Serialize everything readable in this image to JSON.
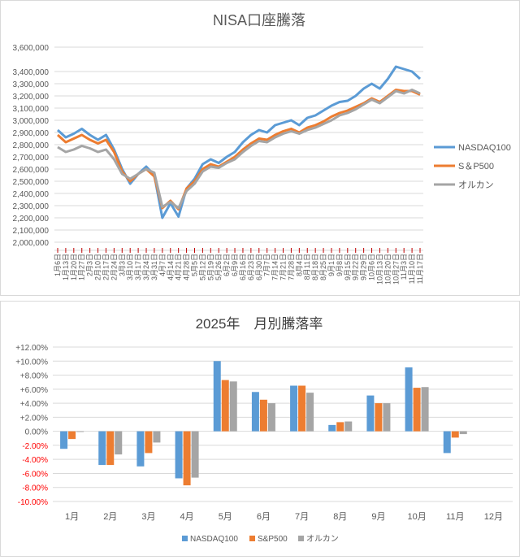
{
  "colors": {
    "nasdaq": "#5b9bd5",
    "sp500": "#ed7d31",
    "orcan": "#a5a5a5",
    "grid": "#d9d9d9",
    "text": "#595959"
  },
  "chart_data": [
    {
      "type": "line",
      "title": "NISA口座騰落",
      "ylim": [
        2000000,
        3600000
      ],
      "yticks": [
        "3,600,000",
        "3,400,000",
        "3,300,000",
        "3,200,000",
        "3,100,000",
        "3,000,000",
        "2,900,000",
        "2,800,000",
        "2,700,000",
        "2,600,000",
        "2,500,000",
        "2,400,000",
        "2,300,000",
        "2,200,000",
        "2,100,000",
        "2,000,000"
      ],
      "ytick_values": [
        3600000,
        3400000,
        3300000,
        3200000,
        3100000,
        3000000,
        2900000,
        2800000,
        2700000,
        2600000,
        2500000,
        2400000,
        2300000,
        2200000,
        2100000,
        2000000
      ],
      "xticks": [
        "1月6日",
        "1月13日",
        "1月20日",
        "1月27日",
        "2月3日",
        "2月10日",
        "2月17日",
        "2月24日",
        "3月3日",
        "3月10日",
        "3月17日",
        "3月24日",
        "3月31日",
        "4月7日",
        "4月14日",
        "4月21日",
        "4月28日",
        "5月5日",
        "5月12日",
        "5月19日",
        "5月26日",
        "6月2日",
        "6月9日",
        "6月16日",
        "6月23日",
        "6月30日",
        "7月7日",
        "7月14日",
        "7月21日",
        "7月28日",
        "8月4日",
        "8月11日",
        "8月18日",
        "8月25日",
        "9月1日",
        "9月8日",
        "9月15日",
        "9月22日",
        "9月29日",
        "10月6日",
        "10月13日",
        "10月20日",
        "10月27日",
        "11月3日",
        "11月10日",
        "11月17日"
      ],
      "x": [
        0,
        1,
        2,
        3,
        4,
        5,
        6,
        7,
        8,
        9,
        10,
        11,
        12,
        13,
        14,
        15,
        16,
        17,
        18,
        19,
        20,
        21,
        22,
        23,
        24,
        25,
        26,
        27,
        28,
        29,
        30,
        31,
        32,
        33,
        34,
        35,
        36,
        37,
        38,
        39,
        40,
        41,
        42,
        43,
        44,
        45
      ],
      "series": [
        {
          "name": "NASDAQ100",
          "values": [
            2920000,
            2860000,
            2890000,
            2930000,
            2880000,
            2840000,
            2880000,
            2760000,
            2600000,
            2480000,
            2560000,
            2620000,
            2550000,
            2200000,
            2320000,
            2210000,
            2440000,
            2520000,
            2640000,
            2680000,
            2650000,
            2700000,
            2740000,
            2820000,
            2880000,
            2920000,
            2900000,
            2960000,
            2980000,
            3000000,
            2960000,
            3020000,
            3040000,
            3080000,
            3120000,
            3150000,
            3160000,
            3200000,
            3260000,
            3300000,
            3260000,
            3340000,
            3440000,
            3420000,
            3400000,
            3340000
          ]
        },
        {
          "name": "S＆P500",
          "values": [
            2880000,
            2820000,
            2850000,
            2880000,
            2840000,
            2810000,
            2840000,
            2740000,
            2580000,
            2500000,
            2560000,
            2600000,
            2540000,
            2280000,
            2340000,
            2270000,
            2440000,
            2500000,
            2600000,
            2640000,
            2620000,
            2660000,
            2700000,
            2760000,
            2810000,
            2850000,
            2840000,
            2880000,
            2910000,
            2930000,
            2900000,
            2940000,
            2960000,
            2990000,
            3030000,
            3060000,
            3080000,
            3110000,
            3140000,
            3180000,
            3150000,
            3200000,
            3250000,
            3240000,
            3240000,
            3210000
          ]
        },
        {
          "name": "オルカン",
          "values": [
            2780000,
            2740000,
            2760000,
            2790000,
            2770000,
            2740000,
            2760000,
            2680000,
            2560000,
            2520000,
            2560000,
            2600000,
            2570000,
            2290000,
            2330000,
            2280000,
            2420000,
            2480000,
            2580000,
            2620000,
            2610000,
            2650000,
            2680000,
            2740000,
            2790000,
            2830000,
            2820000,
            2860000,
            2890000,
            2910000,
            2890000,
            2920000,
            2940000,
            2970000,
            3000000,
            3040000,
            3060000,
            3090000,
            3130000,
            3170000,
            3140000,
            3190000,
            3240000,
            3220000,
            3250000,
            3220000
          ]
        }
      ]
    },
    {
      "type": "bar",
      "title": "2025年　月別騰落率",
      "categories": [
        "1月",
        "2月",
        "3月",
        "4月",
        "5月",
        "6月",
        "7月",
        "8月",
        "9月",
        "10月",
        "11月",
        "12月"
      ],
      "ylim": [
        -10,
        12
      ],
      "ytick_values": [
        12,
        10,
        8,
        6,
        4,
        2,
        0,
        -2,
        -4,
        -6,
        -8,
        -10
      ],
      "yticks": [
        "+12.00%",
        "+10.00%",
        "+8.00%",
        "+6.00%",
        "+4.00%",
        "+2.00%",
        "0.00%",
        "-2.00%",
        "-4.00%",
        "-6.00%",
        "-8.00%",
        "-10.00%"
      ],
      "series": [
        {
          "name": "NASDAQ100",
          "values": [
            -2.5,
            -4.8,
            -5.0,
            -6.7,
            10.0,
            5.6,
            6.5,
            0.9,
            5.1,
            9.1,
            -3.1,
            null
          ]
        },
        {
          "name": "S&P500",
          "values": [
            -1.1,
            -4.8,
            -3.1,
            -7.7,
            7.3,
            4.5,
            6.5,
            1.3,
            4.0,
            6.2,
            -0.9,
            null
          ]
        },
        {
          "name": "オルカン",
          "values": [
            -0.1,
            -3.3,
            -1.6,
            -6.6,
            7.1,
            4.0,
            5.5,
            1.4,
            4.0,
            6.3,
            -0.4,
            null
          ]
        }
      ]
    }
  ]
}
